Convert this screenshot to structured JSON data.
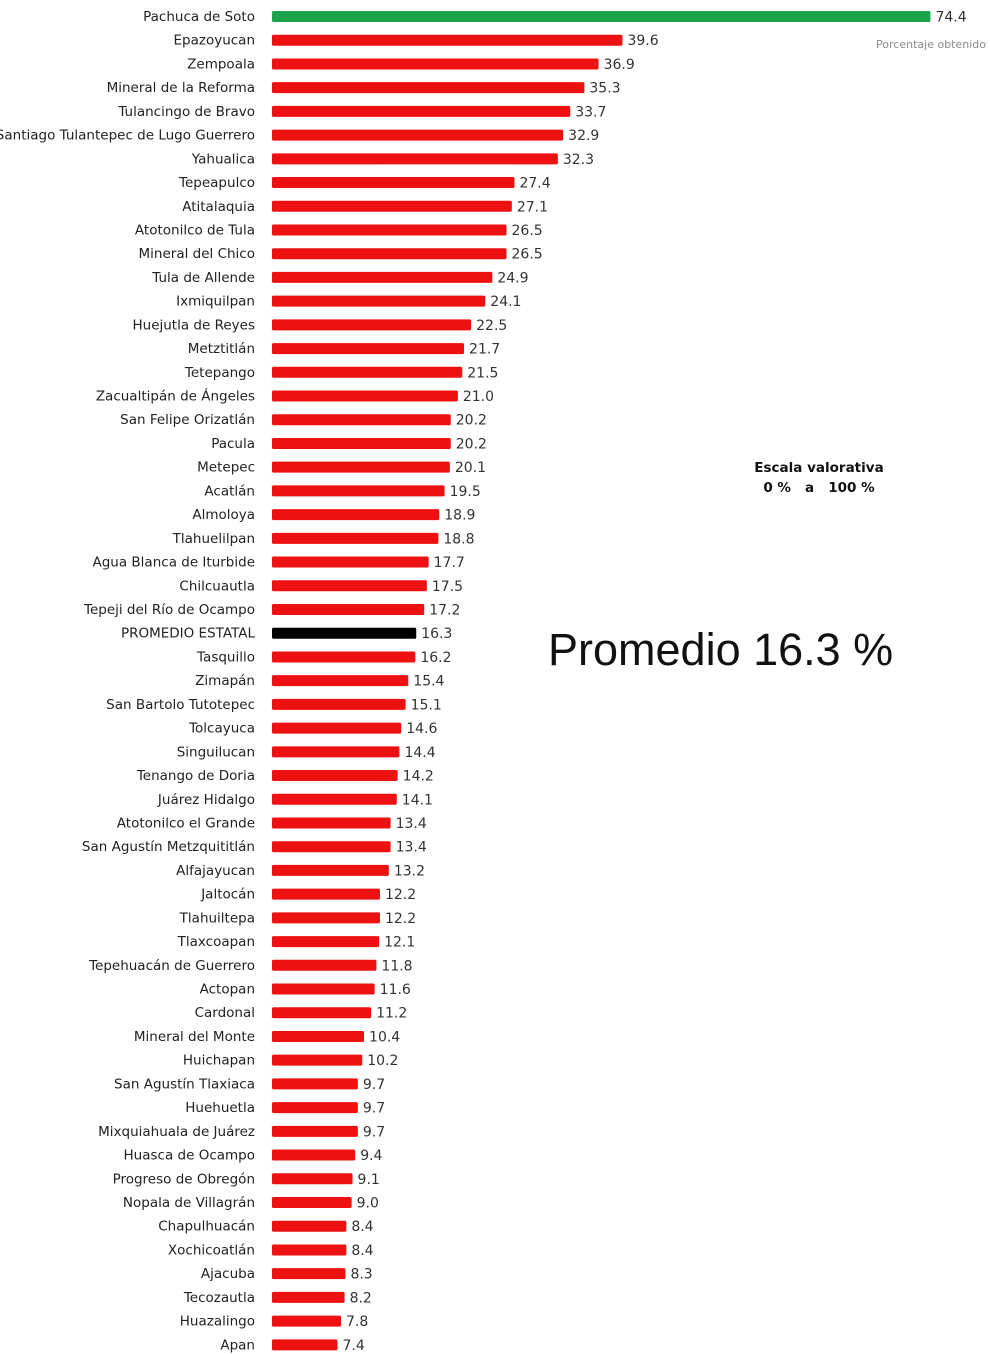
{
  "chart_data": {
    "type": "bar",
    "orientation": "horizontal",
    "categories": [
      "Pachuca de Soto",
      "Epazoyucan",
      "Zempoala",
      "Mineral de la Reforma",
      "Tulancingo de Bravo",
      "Santiago Tulantepec de Lugo Guerrero",
      "Yahualica",
      "Tepeapulco",
      "Atitalaquia",
      "Atotonilco de Tula",
      "Mineral del Chico",
      "Tula de Allende",
      "Ixmiquilpan",
      "Huejutla de Reyes",
      "Metztitlán",
      "Tetepango",
      "Zacualtipán de Ángeles",
      "San Felipe Orizatlán",
      "Pacula",
      "Metepec",
      "Acatlán",
      "Almoloya",
      "Tlahuelilpan",
      "Agua Blanca de Iturbide",
      "Chilcuautla",
      "Tepeji del Río de Ocampo",
      "PROMEDIO ESTATAL",
      "Tasquillo",
      "Zimapán",
      "San Bartolo Tutotepec",
      "Tolcayuca",
      "Singuilucan",
      "Tenango de Doria",
      "Juárez Hidalgo",
      "Atotonilco el Grande",
      "San Agustín Metzquititlán",
      "Alfajayucan",
      "Jaltocán",
      "Tlahuiltepa",
      "Tlaxcoapan",
      "Tepehuacán de Guerrero",
      "Actopan",
      "Cardonal",
      "Mineral del Monte",
      "Huichapan",
      "San Agustín Tlaxiaca",
      "Huehuetla",
      "Mixquiahuala de Juárez",
      "Huasca de Ocampo",
      "Progreso de Obregón",
      "Nopala de Villagrán",
      "Chapulhuacán",
      "Xochicoatlán",
      "Ajacuba",
      "Tecozautla",
      "Huazalingo",
      "Apan"
    ],
    "values": [
      74.4,
      39.6,
      36.9,
      35.3,
      33.7,
      32.9,
      32.3,
      27.4,
      27.1,
      26.5,
      26.5,
      24.9,
      24.1,
      22.5,
      21.7,
      21.5,
      21.0,
      20.2,
      20.2,
      20.1,
      19.5,
      18.9,
      18.8,
      17.7,
      17.5,
      17.2,
      16.3,
      16.2,
      15.4,
      15.1,
      14.6,
      14.4,
      14.2,
      14.1,
      13.4,
      13.4,
      13.2,
      12.2,
      12.2,
      12.1,
      11.8,
      11.6,
      11.2,
      10.4,
      10.2,
      9.7,
      9.7,
      9.7,
      9.4,
      9.1,
      9.0,
      8.4,
      8.4,
      8.3,
      8.2,
      7.8,
      7.4
    ],
    "value_labels": [
      "74.4",
      "39.6",
      "36.9",
      "35.3",
      "33.7",
      "32.9",
      "32.3",
      "27.4",
      "27.1",
      "26.5",
      "26.5",
      "24.9",
      "24.1",
      "22.5",
      "21.7",
      "21.5",
      "21.0",
      "20.2",
      "20.2",
      "20.1",
      "19.5",
      "18.9",
      "18.8",
      "17.7",
      "17.5",
      "17.2",
      "16.3",
      "16.2",
      "15.4",
      "15.1",
      "14.6",
      "14.4",
      "14.2",
      "14.1",
      "13.4",
      "13.4",
      "13.2",
      "12.2",
      "12.2",
      "12.1",
      "11.8",
      "11.6",
      "11.2",
      "10.4",
      "10.2",
      "9.7",
      "9.7",
      "9.7",
      "9.4",
      "9.1",
      "9.0",
      "8.4",
      "8.4",
      "8.3",
      "8.2",
      "7.8",
      "7.4"
    ],
    "xlim": [
      0,
      75
    ],
    "grid": false,
    "colors": {
      "top": "#1aa34a",
      "default": "#ee1111",
      "average": "#000000"
    },
    "highlight": {
      "top_index": 0,
      "average_index": 26
    }
  },
  "legend_note": "Porcentaje obtenido",
  "scale": {
    "title": "Escala valorativa",
    "range": "0 %   a   100 %"
  },
  "average_note": "Promedio 16.3 %"
}
